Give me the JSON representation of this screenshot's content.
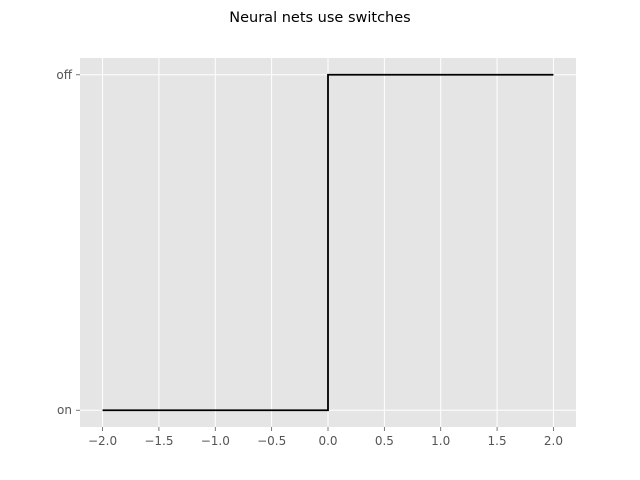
{
  "chart_data": {
    "type": "line",
    "title": "Neural nets use switches",
    "xlabel": "",
    "ylabel": "",
    "xlim": [
      -2.2,
      2.2
    ],
    "ylim": [
      -0.05,
      1.05
    ],
    "grid": true,
    "x_ticks": [
      -2.0,
      -1.5,
      -1.0,
      -0.5,
      0.0,
      0.5,
      1.0,
      1.5,
      2.0
    ],
    "x_tick_labels": [
      "−2.0",
      "−1.5",
      "−1.0",
      "−0.5",
      "0.0",
      "0.5",
      "1.0",
      "1.5",
      "2.0"
    ],
    "y_ticks": [
      0,
      1
    ],
    "y_tick_labels": [
      "on",
      "off"
    ],
    "series": [
      {
        "x": [
          -2.0,
          0.0,
          0.0,
          2.0
        ],
        "y": [
          0,
          0,
          1,
          1
        ],
        "color": "#000000"
      }
    ],
    "colors": {
      "plot_background": "#e5e5e5",
      "grid": "#ffffff",
      "tick_text": "#555555"
    }
  }
}
